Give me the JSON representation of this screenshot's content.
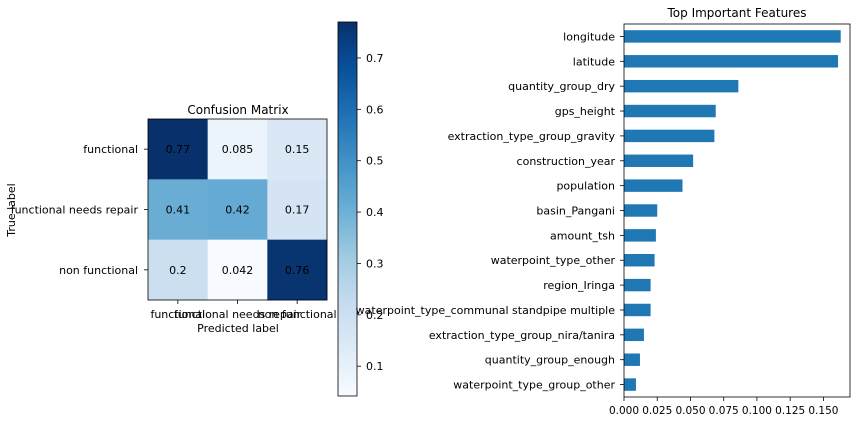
{
  "chart_data": [
    {
      "type": "heatmap",
      "title": "Confusion Matrix",
      "xlabel": "Predicted label",
      "ylabel": "True label",
      "x_categories": [
        "functional",
        "functional needs repair",
        "non functional"
      ],
      "y_categories": [
        "functional",
        "functional needs repair",
        "non functional"
      ],
      "values": [
        [
          0.77,
          0.085,
          0.15
        ],
        [
          0.41,
          0.42,
          0.17
        ],
        [
          0.2,
          0.042,
          0.76
        ]
      ],
      "value_labels": [
        [
          "0.77",
          "0.085",
          "0.15"
        ],
        [
          "0.41",
          "0.42",
          "0.17"
        ],
        [
          "0.2",
          "0.042",
          "0.76"
        ]
      ],
      "colormap": "Blues",
      "colorbar": {
        "range": [
          0.042,
          0.77
        ],
        "ticks": [
          0.1,
          0.2,
          0.3,
          0.4,
          0.5,
          0.6,
          0.7
        ],
        "tick_labels": [
          "0.1",
          "0.2",
          "0.3",
          "0.4",
          "0.5",
          "0.6",
          "0.7"
        ]
      }
    },
    {
      "type": "bar",
      "orientation": "horizontal",
      "title": "Top Important Features",
      "xlabel": "",
      "ylabel": "",
      "categories": [
        "longitude",
        "latitude",
        "quantity_group_dry",
        "gps_height",
        "extraction_type_group_gravity",
        "construction_year",
        "population",
        "basin_Pangani",
        "amount_tsh",
        "waterpoint_type_other",
        "region_Iringa",
        "waterpoint_type_communal standpipe multiple",
        "extraction_type_group_nira/tanira",
        "quantity_group_enough",
        "waterpoint_type_group_other"
      ],
      "values": [
        0.163,
        0.161,
        0.086,
        0.069,
        0.068,
        0.052,
        0.044,
        0.025,
        0.024,
        0.023,
        0.02,
        0.02,
        0.015,
        0.012,
        0.009
      ],
      "xlim": [
        0,
        0.17
      ],
      "xticks": [
        0,
        0.025,
        0.05,
        0.075,
        0.1,
        0.125,
        0.15
      ],
      "xtick_labels": [
        "0.000",
        "0.025",
        "0.050",
        "0.075",
        "0.100",
        "0.125",
        "0.150"
      ],
      "bar_color": "#1f77b4",
      "grid": false
    }
  ]
}
